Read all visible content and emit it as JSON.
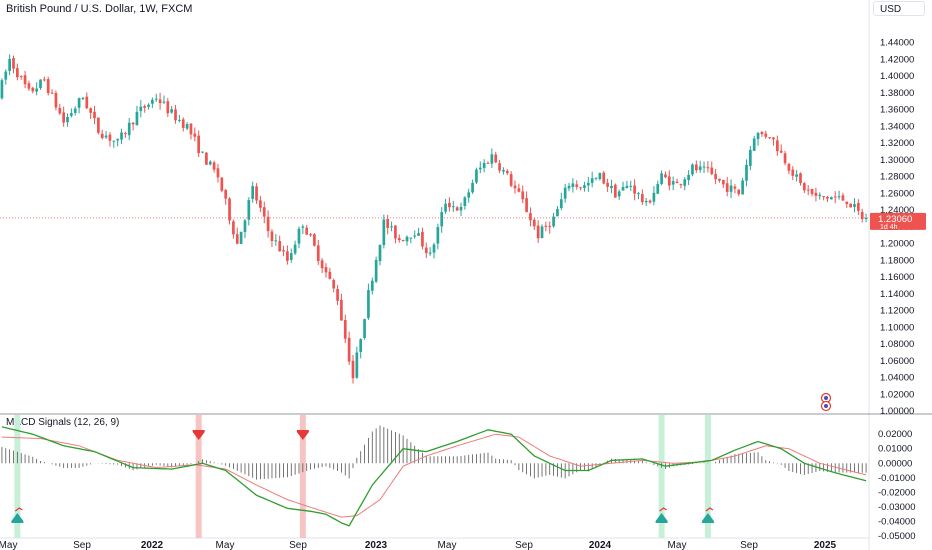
{
  "header": {
    "title": "British Pound / U.S. Dollar, 1W, FXCM",
    "currency_button": "USD"
  },
  "macd_panel": {
    "title": "MACD Signals (12, 26, 9)"
  },
  "price_label": {
    "price": "1.23060",
    "countdown": "1d 4h",
    "color": "#ef5350"
  },
  "colors": {
    "bull": "#26a69a",
    "bear": "#ef5350",
    "macd_line": "#2e9e2e",
    "signal_line": "#ef7b7b",
    "sell_band": "#f7c4c4",
    "buy_band": "#c8efd8"
  },
  "icons": [
    "calendar-event-icon",
    "calendar-event-icon-2"
  ],
  "chart_data": [
    {
      "type": "candlestick",
      "x_tick_labels": [
        "May",
        "Sep",
        "2022",
        "May",
        "Sep",
        "2023",
        "May",
        "Sep",
        "2024",
        "May",
        "Sep",
        "2025"
      ],
      "y_tick_labels": [
        "1.44000",
        "1.42000",
        "1.40000",
        "1.38000",
        "1.36000",
        "1.34000",
        "1.32000",
        "1.30000",
        "1.28000",
        "1.26000",
        "1.24000",
        "1.22000",
        "1.20000",
        "1.18000",
        "1.16000",
        "1.14000",
        "1.12000",
        "1.10000",
        "1.08000",
        "1.06000",
        "1.04000",
        "1.02000",
        "1.00000"
      ],
      "ylim": [
        1.0,
        1.455
      ],
      "last_price": 1.2306,
      "path": [
        [
          0,
          1.375
        ],
        [
          3,
          1.42
        ],
        [
          8,
          1.38
        ],
        [
          12,
          1.395
        ],
        [
          17,
          1.345
        ],
        [
          22,
          1.375
        ],
        [
          26,
          1.335
        ],
        [
          31,
          1.32
        ],
        [
          36,
          1.355
        ],
        [
          41,
          1.375
        ],
        [
          45,
          1.355
        ],
        [
          49,
          1.34
        ],
        [
          53,
          1.305
        ],
        [
          57,
          1.28
        ],
        [
          62,
          1.2
        ],
        [
          66,
          1.265
        ],
        [
          70,
          1.215
        ],
        [
          75,
          1.18
        ],
        [
          79,
          1.225
        ],
        [
          84,
          1.175
        ],
        [
          88,
          1.135
        ],
        [
          92,
          1.04
        ],
        [
          96,
          1.14
        ],
        [
          100,
          1.225
        ],
        [
          104,
          1.205
        ],
        [
          108,
          1.215
        ],
        [
          112,
          1.185
        ],
        [
          116,
          1.25
        ],
        [
          120,
          1.24
        ],
        [
          124,
          1.285
        ],
        [
          128,
          1.305
        ],
        [
          132,
          1.28
        ],
        [
          136,
          1.25
        ],
        [
          140,
          1.21
        ],
        [
          144,
          1.23
        ],
        [
          148,
          1.272
        ],
        [
          152,
          1.268
        ],
        [
          156,
          1.28
        ],
        [
          160,
          1.26
        ],
        [
          164,
          1.27
        ],
        [
          168,
          1.245
        ],
        [
          172,
          1.28
        ],
        [
          176,
          1.27
        ],
        [
          180,
          1.29
        ],
        [
          184,
          1.285
        ],
        [
          188,
          1.27
        ],
        [
          192,
          1.26
        ],
        [
          196,
          1.33
        ],
        [
          200,
          1.33
        ],
        [
          204,
          1.3
        ],
        [
          208,
          1.27
        ],
        [
          212,
          1.255
        ],
        [
          216,
          1.255
        ],
        [
          220,
          1.252
        ],
        [
          224,
          1.231
        ]
      ]
    },
    {
      "type": "line",
      "name": "MACD Signals (12, 26, 9)",
      "y_tick_labels": [
        "0.02000",
        "0.01000",
        "0.00000",
        "-0.01000",
        "-0.02000",
        "-0.03000",
        "-0.04000",
        "-0.05000"
      ],
      "ylim": [
        -0.05,
        0.027
      ],
      "series": [
        {
          "name": "MACD",
          "points": [
            [
              0,
              0.025
            ],
            [
              8,
              0.02
            ],
            [
              16,
              0.012
            ],
            [
              24,
              0.008
            ],
            [
              34,
              -0.003
            ],
            [
              44,
              -0.004
            ],
            [
              52,
              0.0
            ],
            [
              58,
              -0.005
            ],
            [
              66,
              -0.022
            ],
            [
              74,
              -0.031
            ],
            [
              80,
              -0.033
            ],
            [
              84,
              -0.035
            ],
            [
              88,
              -0.041
            ],
            [
              90,
              -0.043
            ],
            [
              96,
              -0.015
            ],
            [
              104,
              0.01
            ],
            [
              110,
              0.008
            ],
            [
              118,
              0.015
            ],
            [
              126,
              0.023
            ],
            [
              132,
              0.02
            ],
            [
              138,
              0.005
            ],
            [
              146,
              -0.005
            ],
            [
              152,
              -0.005
            ],
            [
              158,
              0.002
            ],
            [
              166,
              0.003
            ],
            [
              172,
              -0.002
            ],
            [
              178,
              0.0
            ],
            [
              184,
              0.002
            ],
            [
              190,
              0.009
            ],
            [
              196,
              0.015
            ],
            [
              202,
              0.01
            ],
            [
              208,
              0.0
            ],
            [
              214,
              -0.005
            ],
            [
              218,
              -0.008
            ],
            [
              224,
              -0.012
            ]
          ]
        },
        {
          "name": "Signal",
          "points": [
            [
              0,
              0.018
            ],
            [
              10,
              0.017
            ],
            [
              20,
              0.012
            ],
            [
              30,
              0.002
            ],
            [
              40,
              -0.003
            ],
            [
              50,
              -0.001
            ],
            [
              58,
              -0.004
            ],
            [
              66,
              -0.015
            ],
            [
              74,
              -0.025
            ],
            [
              82,
              -0.032
            ],
            [
              88,
              -0.037
            ],
            [
              92,
              -0.036
            ],
            [
              98,
              -0.025
            ],
            [
              104,
              -0.002
            ],
            [
              110,
              0.005
            ],
            [
              118,
              0.012
            ],
            [
              128,
              0.02
            ],
            [
              134,
              0.018
            ],
            [
              142,
              0.005
            ],
            [
              150,
              -0.002
            ],
            [
              158,
              0.0
            ],
            [
              166,
              0.002
            ],
            [
              174,
              0.0
            ],
            [
              182,
              0.001
            ],
            [
              190,
              0.005
            ],
            [
              198,
              0.012
            ],
            [
              204,
              0.01
            ],
            [
              212,
              0.0
            ],
            [
              218,
              -0.004
            ],
            [
              224,
              -0.008
            ]
          ]
        }
      ],
      "sell_signals_x": [
        51,
        78
      ],
      "buy_signals_x": [
        4,
        171,
        183
      ]
    }
  ]
}
